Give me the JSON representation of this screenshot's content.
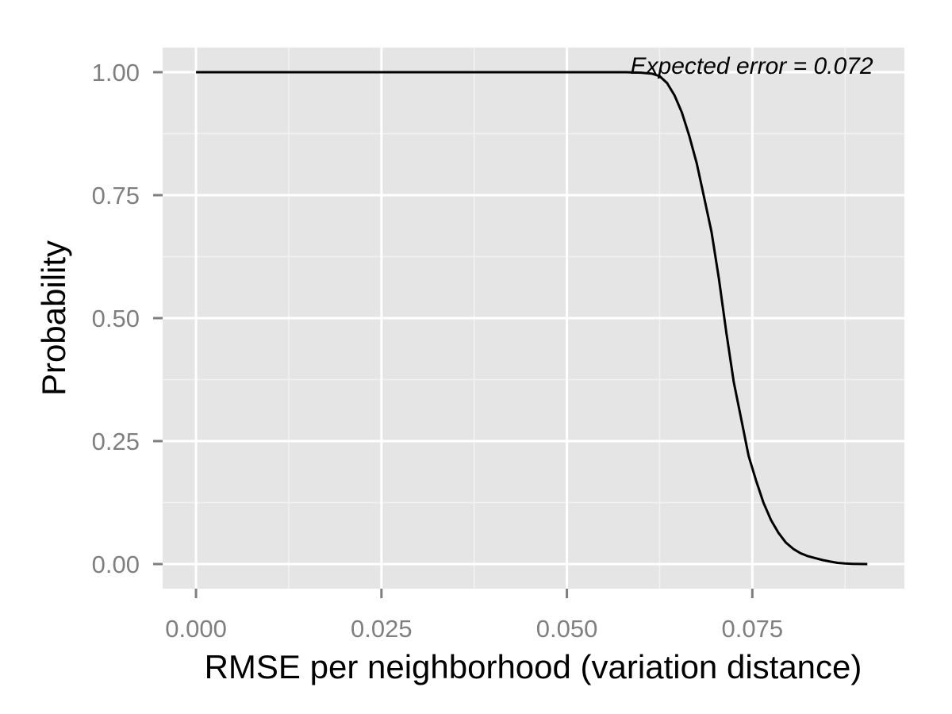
{
  "chart_data": {
    "type": "line",
    "title": "",
    "xlabel": "RMSE per neighborhood (variation distance)",
    "ylabel": "Probability",
    "xlim": [
      -0.0045,
      0.0955
    ],
    "ylim": [
      -0.05,
      1.05
    ],
    "x_ticks": [
      0.0,
      0.025,
      0.05,
      0.075
    ],
    "x_tick_labels": [
      "0.000",
      "0.025",
      "0.050",
      "0.075"
    ],
    "y_ticks": [
      0.0,
      0.25,
      0.5,
      0.75,
      1.0
    ],
    "y_tick_labels": [
      "0.00",
      "0.25",
      "0.50",
      "0.75",
      "1.00"
    ],
    "grid": true,
    "legend": "none",
    "annotation": {
      "text": "Expected error = 0.072",
      "x": 0.09,
      "y": 1.0
    },
    "series": [
      {
        "x": [
          0.0,
          0.055,
          0.058,
          0.06,
          0.0615,
          0.0625,
          0.0635,
          0.0645,
          0.0655,
          0.0665,
          0.0675,
          0.0685,
          0.0695,
          0.0705,
          0.0715,
          0.0725,
          0.0735,
          0.0745,
          0.0755,
          0.0765,
          0.0775,
          0.0785,
          0.0795,
          0.0805,
          0.0815,
          0.0825,
          0.0835,
          0.0845,
          0.0855,
          0.0865,
          0.0875,
          0.0885,
          0.0895,
          0.0905
        ],
        "y": [
          1.0,
          1.0,
          1.0,
          0.999,
          0.997,
          0.992,
          0.978,
          0.953,
          0.918,
          0.87,
          0.815,
          0.745,
          0.675,
          0.58,
          0.47,
          0.37,
          0.295,
          0.22,
          0.17,
          0.125,
          0.09,
          0.064,
          0.044,
          0.031,
          0.022,
          0.016,
          0.012,
          0.008,
          0.005,
          0.0025,
          0.0012,
          0.0005,
          0.0002,
          0.0
        ]
      }
    ]
  },
  "colors": {
    "panel_background": "#e5e5e5",
    "major_grid": "#ffffff",
    "minor_grid": "#f2f2f2",
    "line": "#000000",
    "tick_label": "#7f7f7f"
  }
}
